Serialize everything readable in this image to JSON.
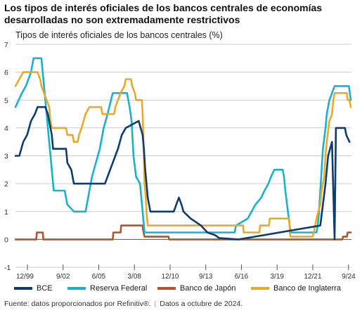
{
  "headline": "Los tipos de interés oficiales de los bancos centrales de economías desarrolladas no son extremadamente restrictivos",
  "source": {
    "text": "Fuente: datos proporcionados por Refinitiv®.",
    "separator": "|",
    "date_note": "Datos a octubre de 2024."
  },
  "chart_data": {
    "type": "line",
    "title": "Tipos de interés oficiales de los bancos centrales (%)",
    "xlabel": "",
    "ylabel": "",
    "xlim": [
      1999.0,
      2024.9
    ],
    "ylim": [
      -1,
      7
    ],
    "yticks": [
      -1,
      0,
      1,
      2,
      3,
      4,
      5,
      6,
      7
    ],
    "xticks": [
      {
        "label": "12/99",
        "x": 1999.92
      },
      {
        "label": "9/02",
        "x": 2002.67
      },
      {
        "label": "6/05",
        "x": 2005.42
      },
      {
        "label": "3/08",
        "x": 2008.17
      },
      {
        "label": "12/10",
        "x": 2010.92
      },
      {
        "label": "9/13",
        "x": 2013.67
      },
      {
        "label": "6/16",
        "x": 2016.42
      },
      {
        "label": "3/19",
        "x": 2019.17
      },
      {
        "label": "12/21",
        "x": 2021.92
      },
      {
        "label": "9/24",
        "x": 2024.67
      }
    ],
    "grid": true,
    "legend_position": "bottom",
    "series": [
      {
        "name": "BCE",
        "color": "#0d3c6e",
        "points": [
          [
            1999.0,
            3.0
          ],
          [
            1999.3,
            3.0
          ],
          [
            1999.6,
            3.5
          ],
          [
            1999.9,
            3.75
          ],
          [
            2000.2,
            4.25
          ],
          [
            2000.5,
            4.5
          ],
          [
            2000.7,
            4.75
          ],
          [
            2001.3,
            4.75
          ],
          [
            2001.5,
            4.5
          ],
          [
            2001.7,
            4.0
          ],
          [
            2001.8,
            3.75
          ],
          [
            2001.9,
            3.25
          ],
          [
            2002.9,
            3.25
          ],
          [
            2003.0,
            2.75
          ],
          [
            2003.3,
            2.5
          ],
          [
            2003.5,
            2.0
          ],
          [
            2005.9,
            2.0
          ],
          [
            2006.1,
            2.25
          ],
          [
            2006.3,
            2.5
          ],
          [
            2006.5,
            2.75
          ],
          [
            2006.7,
            3.0
          ],
          [
            2006.9,
            3.25
          ],
          [
            2007.2,
            3.75
          ],
          [
            2007.5,
            4.0
          ],
          [
            2008.5,
            4.25
          ],
          [
            2008.8,
            3.75
          ],
          [
            2008.9,
            3.25
          ],
          [
            2009.0,
            2.5
          ],
          [
            2009.2,
            1.5
          ],
          [
            2009.4,
            1.0
          ],
          [
            2011.2,
            1.0
          ],
          [
            2011.4,
            1.25
          ],
          [
            2011.6,
            1.5
          ],
          [
            2011.8,
            1.25
          ],
          [
            2011.95,
            1.0
          ],
          [
            2012.5,
            0.75
          ],
          [
            2013.3,
            0.5
          ],
          [
            2013.8,
            0.25
          ],
          [
            2014.4,
            0.15
          ],
          [
            2014.7,
            0.05
          ],
          [
            2016.2,
            0.0
          ],
          [
            2023.6,
            0.0
          ],
          [
            2022.5,
            0.5
          ],
          [
            2022.7,
            1.25
          ],
          [
            2022.9,
            2.0
          ],
          [
            2023.1,
            3.0
          ],
          [
            2023.4,
            3.5
          ],
          [
            2023.7,
            4.0
          ],
          [
            2024.4,
            4.0
          ],
          [
            2024.5,
            3.75
          ],
          [
            2024.75,
            3.5
          ]
        ]
      },
      {
        "name": "Reserva Federal",
        "color": "#1ab0cf",
        "points": [
          [
            1999.0,
            4.75
          ],
          [
            1999.5,
            5.25
          ],
          [
            1999.8,
            5.5
          ],
          [
            2000.0,
            5.75
          ],
          [
            2000.2,
            6.0
          ],
          [
            2000.4,
            6.5
          ],
          [
            2001.0,
            6.5
          ],
          [
            2001.2,
            5.5
          ],
          [
            2001.4,
            4.5
          ],
          [
            2001.6,
            3.5
          ],
          [
            2001.8,
            2.5
          ],
          [
            2001.95,
            1.75
          ],
          [
            2002.8,
            1.75
          ],
          [
            2003.0,
            1.25
          ],
          [
            2003.5,
            1.0
          ],
          [
            2004.4,
            1.0
          ],
          [
            2004.6,
            1.5
          ],
          [
            2004.9,
            2.25
          ],
          [
            2005.2,
            2.75
          ],
          [
            2005.5,
            3.25
          ],
          [
            2005.8,
            4.0
          ],
          [
            2006.1,
            4.5
          ],
          [
            2006.5,
            5.25
          ],
          [
            2007.6,
            5.25
          ],
          [
            2007.8,
            4.75
          ],
          [
            2007.95,
            4.25
          ],
          [
            2008.1,
            3.0
          ],
          [
            2008.3,
            2.25
          ],
          [
            2008.6,
            2.0
          ],
          [
            2008.8,
            1.0
          ],
          [
            2008.95,
            0.25
          ],
          [
            2015.9,
            0.25
          ],
          [
            2016.0,
            0.5
          ],
          [
            2016.9,
            0.75
          ],
          [
            2017.2,
            1.0
          ],
          [
            2017.5,
            1.25
          ],
          [
            2017.95,
            1.5
          ],
          [
            2018.2,
            1.75
          ],
          [
            2018.5,
            2.0
          ],
          [
            2018.7,
            2.25
          ],
          [
            2018.95,
            2.5
          ],
          [
            2019.6,
            2.5
          ],
          [
            2019.7,
            2.25
          ],
          [
            2019.8,
            1.75
          ],
          [
            2020.2,
            0.25
          ],
          [
            2022.2,
            0.25
          ],
          [
            2022.3,
            0.5
          ],
          [
            2022.4,
            1.0
          ],
          [
            2022.5,
            1.75
          ],
          [
            2022.7,
            3.25
          ],
          [
            2022.9,
            4.0
          ],
          [
            2023.0,
            4.5
          ],
          [
            2023.2,
            5.0
          ],
          [
            2023.6,
            5.5
          ],
          [
            2024.7,
            5.5
          ],
          [
            2024.85,
            5.0
          ]
        ]
      },
      {
        "name": "Banco de Japón",
        "color": "#b5522a",
        "points": [
          [
            1999.0,
            0.0
          ],
          [
            2000.6,
            0.0
          ],
          [
            2000.65,
            0.25
          ],
          [
            2001.1,
            0.25
          ],
          [
            2001.15,
            0.0
          ],
          [
            2006.5,
            0.0
          ],
          [
            2006.55,
            0.25
          ],
          [
            2007.1,
            0.25
          ],
          [
            2007.15,
            0.5
          ],
          [
            2008.8,
            0.5
          ],
          [
            2008.85,
            0.3
          ],
          [
            2008.95,
            0.1
          ],
          [
            2010.8,
            0.1
          ],
          [
            2010.85,
            0.0
          ],
          [
            2024.2,
            0.0
          ],
          [
            2024.25,
            0.1
          ],
          [
            2024.55,
            0.1
          ],
          [
            2024.6,
            0.25
          ],
          [
            2024.85,
            0.25
          ]
        ]
      },
      {
        "name": "Banco de Inglaterra",
        "color": "#e8a92c",
        "points": [
          [
            1999.0,
            5.5
          ],
          [
            1999.3,
            5.75
          ],
          [
            1999.6,
            6.0
          ],
          [
            2000.7,
            6.0
          ],
          [
            2000.9,
            5.75
          ],
          [
            2001.0,
            5.5
          ],
          [
            2001.2,
            5.25
          ],
          [
            2001.4,
            5.0
          ],
          [
            2001.6,
            4.75
          ],
          [
            2001.7,
            4.25
          ],
          [
            2001.8,
            4.0
          ],
          [
            2002.9,
            4.0
          ],
          [
            2003.0,
            3.75
          ],
          [
            2003.4,
            3.75
          ],
          [
            2003.5,
            3.5
          ],
          [
            2003.8,
            3.5
          ],
          [
            2003.9,
            3.75
          ],
          [
            2004.1,
            4.0
          ],
          [
            2004.4,
            4.5
          ],
          [
            2004.7,
            4.75
          ],
          [
            2005.6,
            4.75
          ],
          [
            2005.7,
            4.5
          ],
          [
            2006.6,
            4.5
          ],
          [
            2006.7,
            4.75
          ],
          [
            2006.9,
            5.0
          ],
          [
            2007.1,
            5.25
          ],
          [
            2007.4,
            5.5
          ],
          [
            2007.5,
            5.75
          ],
          [
            2007.9,
            5.75
          ],
          [
            2008.0,
            5.5
          ],
          [
            2008.2,
            5.25
          ],
          [
            2008.3,
            5.0
          ],
          [
            2008.75,
            5.0
          ],
          [
            2008.8,
            4.5
          ],
          [
            2008.9,
            3.0
          ],
          [
            2008.95,
            2.0
          ],
          [
            2009.05,
            1.5
          ],
          [
            2009.1,
            1.0
          ],
          [
            2009.2,
            0.5
          ],
          [
            2016.55,
            0.5
          ],
          [
            2016.6,
            0.25
          ],
          [
            2017.8,
            0.25
          ],
          [
            2017.85,
            0.5
          ],
          [
            2018.55,
            0.5
          ],
          [
            2018.6,
            0.75
          ],
          [
            2020.1,
            0.75
          ],
          [
            2020.15,
            0.25
          ],
          [
            2020.2,
            0.1
          ],
          [
            2021.9,
            0.1
          ],
          [
            2022.0,
            0.25
          ],
          [
            2022.1,
            0.5
          ],
          [
            2022.2,
            0.75
          ],
          [
            2022.35,
            1.0
          ],
          [
            2022.5,
            1.25
          ],
          [
            2022.6,
            1.75
          ],
          [
            2022.8,
            2.25
          ],
          [
            2022.9,
            3.0
          ],
          [
            2023.0,
            3.5
          ],
          [
            2023.2,
            4.25
          ],
          [
            2023.4,
            4.5
          ],
          [
            2023.5,
            5.0
          ],
          [
            2023.6,
            5.25
          ],
          [
            2024.55,
            5.25
          ],
          [
            2024.6,
            5.0
          ],
          [
            2024.75,
            5.0
          ],
          [
            2024.85,
            4.75
          ]
        ]
      }
    ]
  }
}
